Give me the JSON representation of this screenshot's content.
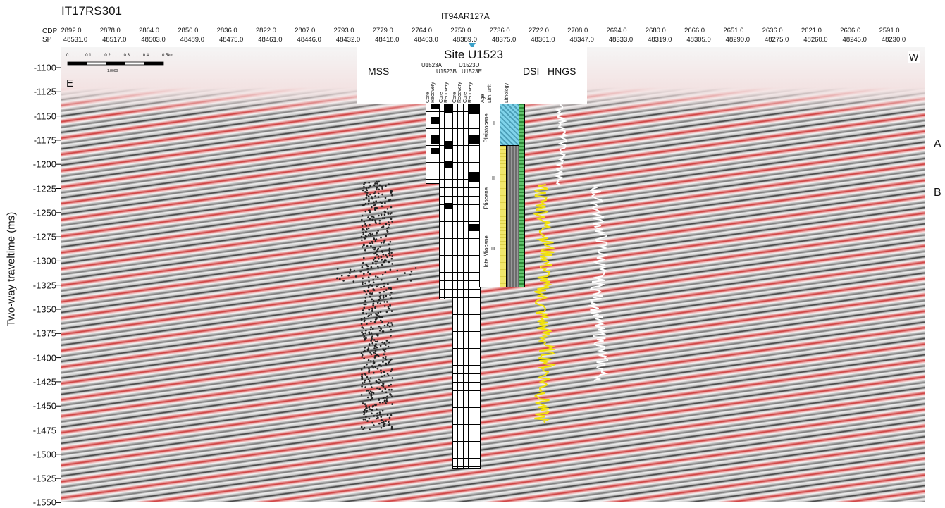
{
  "header": {
    "profile_name": "IT17RS301",
    "crossline_name": "IT94AR127A",
    "cdp_label": "CDP",
    "sp_label": "SP",
    "cdp_values": [
      "2892.0",
      "2878.0",
      "2864.0",
      "2850.0",
      "2836.0",
      "2822.0",
      "2807.0",
      "2793.0",
      "2779.0",
      "2764.0",
      "2750.0",
      "2736.0",
      "2722.0",
      "2708.0",
      "2694.0",
      "2680.0",
      "2666.0",
      "2651.0",
      "2636.0",
      "2621.0",
      "2606.0",
      "2591.0"
    ],
    "sp_values": [
      "48531.0",
      "48517.0",
      "48503.0",
      "48489.0",
      "48475.0",
      "48461.0",
      "48446.0",
      "48432.0",
      "48418.0",
      "48403.0",
      "48389.0",
      "48375.0",
      "48361.0",
      "48347.0",
      "48333.0",
      "48319.0",
      "48305.0",
      "48290.0",
      "48275.0",
      "48260.0",
      "48245.0",
      "48230.0"
    ]
  },
  "axis": {
    "y_label": "Two-way traveltime (ms)",
    "ticks": [
      "-1100",
      "-1125",
      "-1150",
      "-1175",
      "-1200",
      "-1225",
      "-1250",
      "-1275",
      "-1300",
      "-1325",
      "-1350",
      "-1375",
      "-1400",
      "-1425",
      "-1450",
      "-1475",
      "-1500",
      "-1525",
      "-1550"
    ]
  },
  "panel": {
    "label_east": "E",
    "label_west": "W",
    "site_title": "Site U1523",
    "scale_ticks": [
      "0",
      "0.1",
      "0.2",
      "0.3",
      "0.4",
      "0.5km"
    ],
    "scale_ratio": "1:8000",
    "holes": [
      "U1523A",
      "U1523B",
      "U1523D",
      "U1523E"
    ],
    "column_headers": [
      "Core",
      "Recovery",
      "Core",
      "Recovery",
      "Core",
      "Recovery",
      "Core",
      "Recovery",
      "Age",
      "Lith. unit",
      "Lithology"
    ],
    "ages": [
      "Pleistocene",
      "Pliocene",
      "late Miocene"
    ],
    "units": [
      "I",
      "II",
      "III"
    ],
    "logs": [
      "MSS",
      "DSI",
      "HNGS"
    ],
    "side_labels": [
      "A",
      "B"
    ]
  },
  "colors": {
    "seismic_red": "#cc3b3b",
    "seismic_black": "#3a3a3a",
    "dsi_log": "#f2e20a",
    "hngs_log": "#ffffff",
    "mss_points": "#222222",
    "site_marker": "#3aa0c8",
    "lith_yellow": "#f1e66b",
    "lith_cyan": "#7fd3ea",
    "lith_green": "#5fc36b"
  }
}
